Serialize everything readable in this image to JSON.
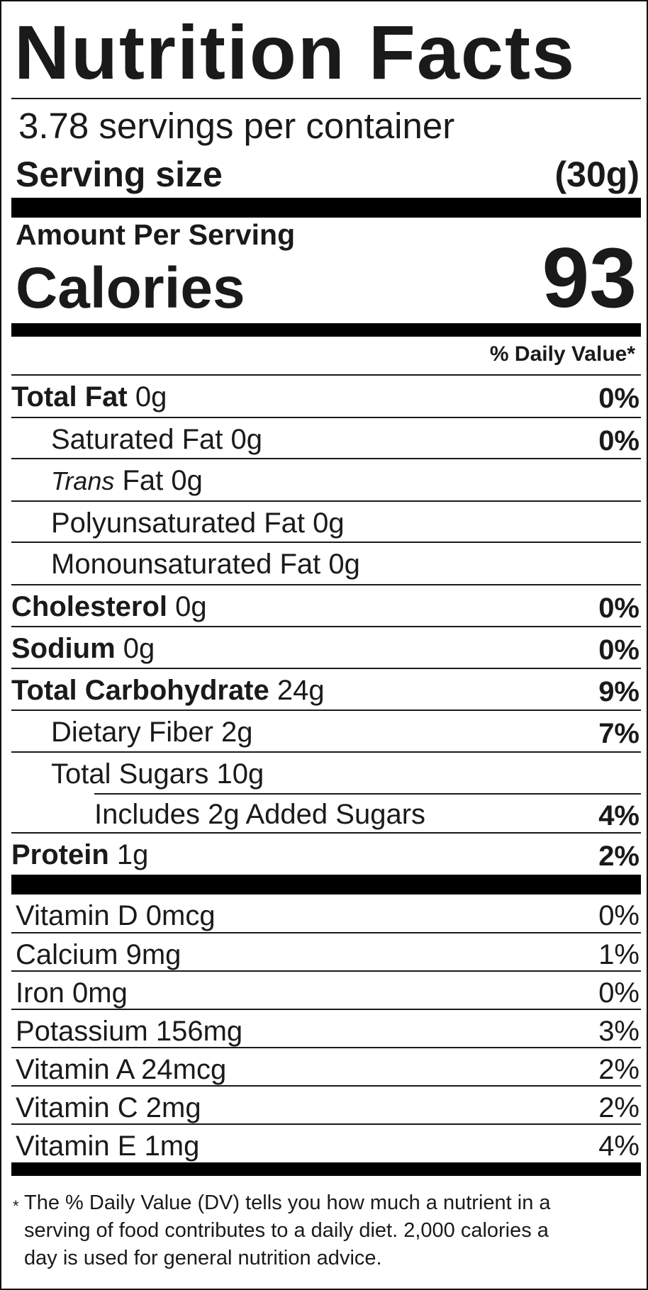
{
  "title": "Nutrition Facts",
  "servings_per_container": "3.78 servings per container",
  "serving_size": {
    "label": "Serving size",
    "value": "(30g)"
  },
  "amount_per_serving": "Amount Per Serving",
  "calories": {
    "label": "Calories",
    "value": "93"
  },
  "daily_value_header": "% Daily Value*",
  "nutrients": [
    {
      "name": "Total Fat",
      "amount": " 0g",
      "dv": "0%"
    },
    {
      "name": "Saturated Fat 0g",
      "dv": "0%"
    },
    {
      "name_italic": "Trans",
      "name": " Fat 0g",
      "dv": ""
    },
    {
      "name": "Polyunsaturated Fat 0g",
      "dv": ""
    },
    {
      "name": "Monounsaturated Fat 0g",
      "dv": ""
    },
    {
      "name": "Cholesterol",
      "amount": " 0g",
      "dv": "0%"
    },
    {
      "name": "Sodium",
      "amount": " 0g",
      "dv": "0%"
    },
    {
      "name": "Total Carbohydrate",
      "amount": " 24g",
      "dv": "9%"
    },
    {
      "name": "Dietary Fiber 2g",
      "dv": "7%"
    },
    {
      "name": "Total Sugars 10g",
      "dv": ""
    },
    {
      "name": "Includes 2g Added Sugars",
      "dv": "4%"
    },
    {
      "name": "Protein",
      "amount": " 1g",
      "dv": "2%"
    }
  ],
  "vitamins": [
    {
      "name": "Vitamin D 0mcg",
      "dv": "0%"
    },
    {
      "name": "Calcium 9mg",
      "dv": "1%"
    },
    {
      "name": "Iron 0mg",
      "dv": "0%"
    },
    {
      "name": "Potassium 156mg",
      "dv": "3%"
    },
    {
      "name": "Vitamin A 24mcg",
      "dv": "2%"
    },
    {
      "name": "Vitamin C 2mg",
      "dv": "2%"
    },
    {
      "name": "Vitamin E 1mg",
      "dv": "4%"
    }
  ],
  "footnote": {
    "symbol": "*",
    "line1": "The % Daily Value (DV) tells you how much a nutrient in a",
    "line2": "serving of food contributes to a daily diet. 2,000 calories a",
    "line3": "day is used for general nutrition advice."
  }
}
